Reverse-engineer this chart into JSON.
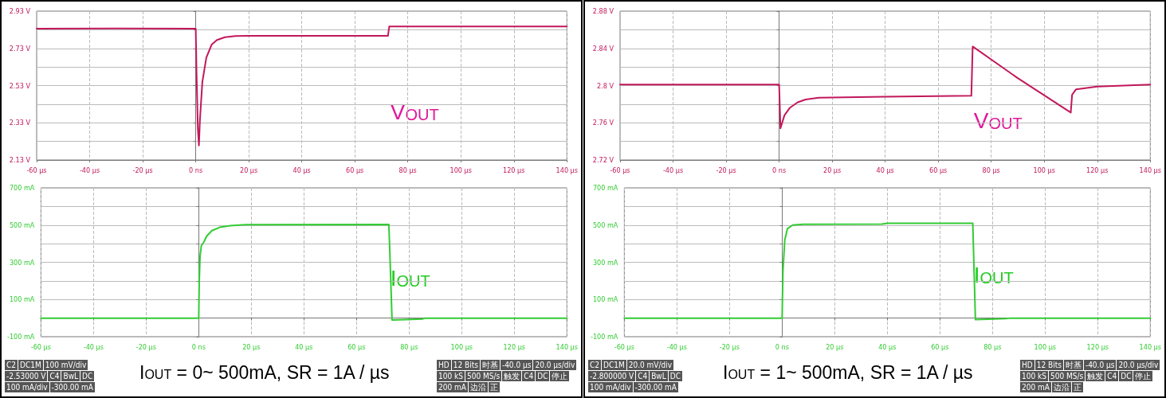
{
  "chart_data": [
    {
      "type": "line",
      "marker": "none",
      "line_style": "solid",
      "grid": true,
      "xlim": [
        -60,
        140
      ],
      "xticks": [
        {
          "value": -60,
          "label": "-60 µs"
        },
        {
          "value": -40,
          "label": "-40 µs"
        },
        {
          "value": -20,
          "label": "-20 µs"
        },
        {
          "value": 0,
          "label": "0 ns"
        },
        {
          "value": 20,
          "label": "20 µs"
        },
        {
          "value": 40,
          "label": "40 µs"
        },
        {
          "value": 60,
          "label": "60 µs"
        },
        {
          "value": 80,
          "label": "80 µs"
        },
        {
          "value": 100,
          "label": "100 µs"
        },
        {
          "value": 120,
          "label": "120 µs"
        },
        {
          "value": 140,
          "label": "140 µs"
        }
      ],
      "ylim": [
        2.13,
        2.93
      ],
      "yticks": [
        {
          "value": 2.13,
          "label": "2.13 V"
        },
        {
          "value": 2.23,
          "label": null
        },
        {
          "value": 2.33,
          "label": "2.33 V"
        },
        {
          "value": 2.43,
          "label": null
        },
        {
          "value": 2.53,
          "label": "2.53 V"
        },
        {
          "value": 2.63,
          "label": null
        },
        {
          "value": 2.73,
          "label": "2.73 V"
        },
        {
          "value": 2.83,
          "label": null
        },
        {
          "value": 2.93,
          "label": "2.93 V"
        }
      ],
      "series": [
        {
          "name": "V$_{OUT}$",
          "color": "#c2185b",
          "x": [
            -60,
            -30,
            0,
            0.3,
            0.8,
            1.2,
            1.6,
            2.5,
            4,
            6,
            8,
            11,
            15,
            20,
            40,
            72.5,
            73,
            100,
            140
          ],
          "values": [
            2.836,
            2.837,
            2.836,
            2.6,
            2.3,
            2.208,
            2.35,
            2.55,
            2.68,
            2.75,
            2.775,
            2.79,
            2.796,
            2.797,
            2.797,
            2.797,
            2.848,
            2.848,
            2.848
          ]
        }
      ]
    },
    {
      "type": "line",
      "marker": "none",
      "line_style": "solid",
      "grid": true,
      "xlim": [
        -60,
        140
      ],
      "xticks": [
        {
          "value": -60,
          "label": "-60 µs"
        },
        {
          "value": -40,
          "label": "-40 µs"
        },
        {
          "value": -20,
          "label": "-20 µs"
        },
        {
          "value": 0,
          "label": "0 ns"
        },
        {
          "value": 20,
          "label": "20 µs"
        },
        {
          "value": 40,
          "label": "40 µs"
        },
        {
          "value": 60,
          "label": "60 µs"
        },
        {
          "value": 80,
          "label": "80 µs"
        },
        {
          "value": 100,
          "label": "100 µs"
        },
        {
          "value": 120,
          "label": "120 µs"
        },
        {
          "value": 140,
          "label": "140 µs"
        }
      ],
      "ylim": [
        -100,
        700
      ],
      "yticks": [
        {
          "value": -100,
          "label": "-100 mA"
        },
        {
          "value": 0,
          "label": null
        },
        {
          "value": 100,
          "label": "100 mA"
        },
        {
          "value": 200,
          "label": null
        },
        {
          "value": 300,
          "label": "300 mA"
        },
        {
          "value": 400,
          "label": null
        },
        {
          "value": 500,
          "label": "500 mA"
        },
        {
          "value": 600,
          "label": null
        },
        {
          "value": 700,
          "label": "700 mA"
        }
      ],
      "series": [
        {
          "name": "I$_{OUT}$",
          "color": "#33cc33",
          "x": [
            -60,
            0,
            0.2,
            0.5,
            1,
            2,
            3,
            5,
            8,
            12,
            18,
            72.3,
            72.8,
            73.5,
            85,
            86,
            140
          ],
          "values": [
            0,
            0,
            200,
            330,
            390,
            410,
            440,
            470,
            488,
            497,
            502,
            503,
            300,
            -10,
            -5,
            0,
            0
          ]
        }
      ],
      "annotations": [
        "I$_{OUT}$ = 0~ 500mA, SR = 1A / µs",
        "C2",
        "DC1M",
        "100 mV/div",
        "-2.53000 V",
        "C4",
        "BwL",
        "DC",
        "100 mA/div",
        "-300.00 mA",
        "HD",
        "12 Bits",
        "时基",
        "-40.0 µs",
        "20.0 µs/div",
        "100 kS",
        "500 MS/s",
        "触发",
        "C4",
        "DC",
        "停止",
        "200 mA",
        "边沿",
        "正"
      ]
    },
    {
      "type": "line",
      "marker": "none",
      "line_style": "solid",
      "grid": true,
      "xlim": [
        -60,
        140
      ],
      "xticks": [
        {
          "value": -60,
          "label": "-60 µs"
        },
        {
          "value": -40,
          "label": "-40 µs"
        },
        {
          "value": -20,
          "label": "-20 µs"
        },
        {
          "value": 0,
          "label": "0 ns"
        },
        {
          "value": 20,
          "label": "20 µs"
        },
        {
          "value": 40,
          "label": "40 µs"
        },
        {
          "value": 60,
          "label": "60 µs"
        },
        {
          "value": 80,
          "label": "80 µs"
        },
        {
          "value": 100,
          "label": "100 µs"
        },
        {
          "value": 120,
          "label": "120 µs"
        },
        {
          "value": 140,
          "label": "140 µs"
        }
      ],
      "ylim": [
        2.72,
        2.88
      ],
      "yticks": [
        {
          "value": 2.72,
          "label": "2.72 V"
        },
        {
          "value": 2.74,
          "label": null
        },
        {
          "value": 2.76,
          "label": "2.76 V"
        },
        {
          "value": 2.78,
          "label": null
        },
        {
          "value": 2.8,
          "label": "2.8 V"
        },
        {
          "value": 2.82,
          "label": null
        },
        {
          "value": 2.84,
          "label": "2.84 V"
        },
        {
          "value": 2.86,
          "label": null
        },
        {
          "value": 2.88,
          "label": "2.88 V"
        }
      ],
      "series": [
        {
          "name": "V$_{OUT}$",
          "color": "#c2185b",
          "x": [
            -60,
            -30,
            0,
            0.5,
            2,
            4,
            7,
            10,
            15,
            40,
            72.5,
            73,
            90,
            110,
            110.5,
            112,
            120,
            140
          ],
          "values": [
            2.801,
            2.801,
            2.801,
            2.754,
            2.768,
            2.776,
            2.782,
            2.785,
            2.787,
            2.788,
            2.789,
            2.842,
            2.808,
            2.771,
            2.79,
            2.796,
            2.799,
            2.801
          ]
        }
      ]
    },
    {
      "type": "line",
      "marker": "none",
      "line_style": "solid",
      "grid": true,
      "xlim": [
        -60,
        140
      ],
      "xticks": [
        {
          "value": -60,
          "label": "-60 µs"
        },
        {
          "value": -40,
          "label": "-40 µs"
        },
        {
          "value": -20,
          "label": "-20 µs"
        },
        {
          "value": 0,
          "label": "0 ns"
        },
        {
          "value": 20,
          "label": "20 µs"
        },
        {
          "value": 40,
          "label": "40 µs"
        },
        {
          "value": 60,
          "label": "60 µs"
        },
        {
          "value": 80,
          "label": "80 µs"
        },
        {
          "value": 100,
          "label": "100 µs"
        },
        {
          "value": 120,
          "label": "120 µs"
        },
        {
          "value": 140,
          "label": "140 µs"
        }
      ],
      "ylim": [
        -100,
        700
      ],
      "yticks": [
        {
          "value": -100,
          "label": "-100 mA"
        },
        {
          "value": 0,
          "label": null
        },
        {
          "value": 100,
          "label": "100 mA"
        },
        {
          "value": 200,
          "label": null
        },
        {
          "value": 300,
          "label": "300 mA"
        },
        {
          "value": 400,
          "label": null
        },
        {
          "value": 500,
          "label": "500 mA"
        },
        {
          "value": 600,
          "label": null
        },
        {
          "value": 700,
          "label": "700 mA"
        }
      ],
      "series": [
        {
          "name": "I$_{OUT}$",
          "color": "#33cc33",
          "x": [
            -60,
            0,
            0.3,
            1,
            2,
            4,
            8,
            38,
            40,
            72.5,
            73,
            73.5,
            85,
            87,
            140
          ],
          "values": [
            0,
            0,
            250,
            420,
            480,
            500,
            504,
            505,
            510,
            510,
            250,
            -8,
            -3,
            0,
            0
          ]
        }
      ],
      "annotations": [
        "I$_{OUT}$ = 1~ 500mA, SR = 1A / µs",
        "C2",
        "DC1M",
        "20.0 mV/div",
        "-2.800000 V",
        "C4",
        "BwL",
        "DC",
        "100 mA/div",
        "-300.00 mA",
        "HD",
        "12 Bits",
        "时基",
        "-40.0 µs",
        "20.0 µs/div",
        "100 kS",
        "500 MS/s",
        "触发",
        "C4",
        "DC",
        "停止",
        "200 mA",
        "边沿",
        "正"
      ]
    }
  ]
}
